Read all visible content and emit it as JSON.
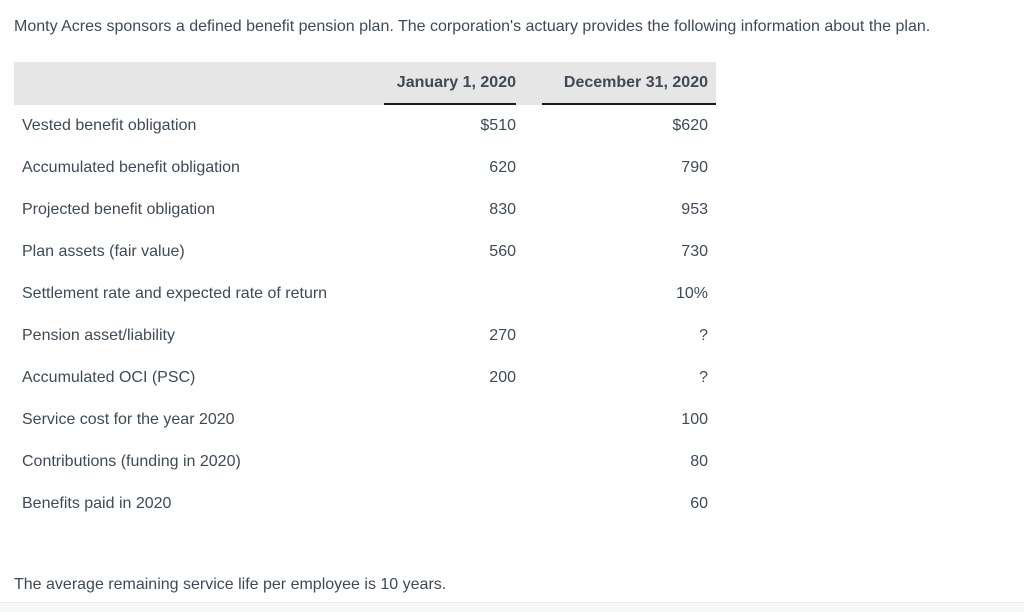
{
  "intro": "Monty Acres sponsors a defined benefit pension plan. The corporation's actuary provides the following information about the plan.",
  "table": {
    "columns": [
      "January 1, 2020",
      "December 31, 2020"
    ],
    "rows": [
      {
        "label": "Vested benefit obligation",
        "jan": "$510",
        "dec": "$620"
      },
      {
        "label": "Accumulated benefit obligation",
        "jan": "620",
        "dec": "790"
      },
      {
        "label": "Projected benefit obligation",
        "jan": "830",
        "dec": "953"
      },
      {
        "label": "Plan assets (fair value)",
        "jan": "560",
        "dec": "730"
      },
      {
        "label": "Settlement rate and expected rate of return",
        "jan": "",
        "dec": "10%"
      },
      {
        "label": "Pension asset/liability",
        "jan": "270",
        "dec": "?"
      },
      {
        "label": "Accumulated OCI (PSC)",
        "jan": "200",
        "dec": "?"
      },
      {
        "label": "Service cost for the year 2020",
        "jan": "",
        "dec": "100"
      },
      {
        "label": "Contributions (funding in 2020)",
        "jan": "",
        "dec": "80"
      },
      {
        "label": "Benefits paid in 2020",
        "jan": "",
        "dec": "60"
      }
    ]
  },
  "footer": "The average remaining service life per employee is 10 years.",
  "colors": {
    "text": "#3e4a57",
    "header_background": "#e6e6e6",
    "header_underline": "#1c1c1c",
    "page_edge": "#f6f7f7"
  }
}
